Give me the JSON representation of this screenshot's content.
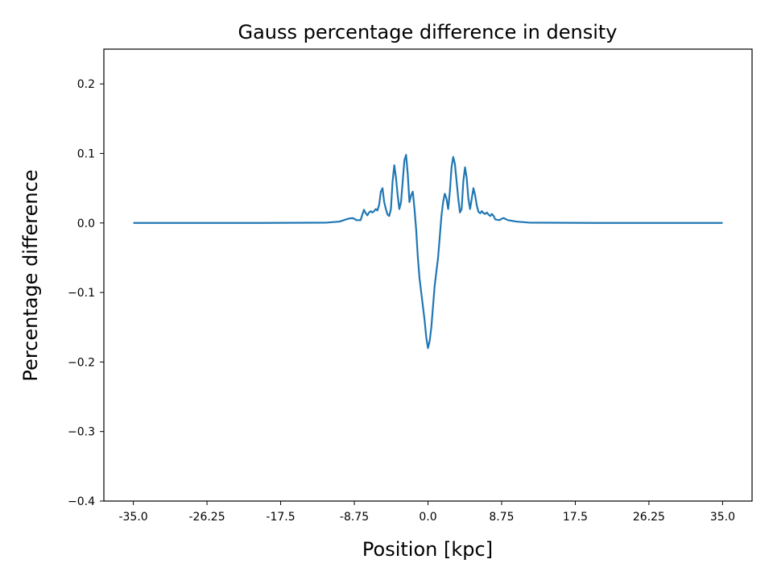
{
  "chart_data": {
    "type": "line",
    "title": "Gauss percentage difference in density",
    "xlabel": "Position [kpc]",
    "ylabel": "Percentage difference",
    "xlim": [
      -38.5,
      38.5
    ],
    "ylim": [
      -0.4,
      0.25
    ],
    "xticks": [
      -35.0,
      -26.25,
      -17.5,
      -8.75,
      0.0,
      8.75,
      17.5,
      26.25,
      35.0
    ],
    "xtick_labels": [
      "-35.0",
      "-26.25",
      "-17.5",
      "-8.75",
      "0.0",
      "8.75",
      "17.5",
      "26.25",
      "35.0"
    ],
    "yticks": [
      0.2,
      0.1,
      0.0,
      -0.1,
      -0.2,
      -0.3,
      -0.4
    ],
    "ytick_labels": [
      "0.2",
      "0.1",
      "0.0",
      "−0.1",
      "−0.2",
      "−0.3",
      "−0.4"
    ],
    "grid": false,
    "line_color": "#1f77b4",
    "series": [
      {
        "x": [
          -35.0,
          -20.0,
          -12.0,
          -10.5,
          -9.5,
          -9.0,
          -8.75,
          -8.5,
          -8.0,
          -7.8,
          -7.6,
          -7.4,
          -7.2,
          -7.0,
          -6.8,
          -6.6,
          -6.4,
          -6.2,
          -6.0,
          -5.8,
          -5.6,
          -5.4,
          -5.2,
          -5.0,
          -4.8,
          -4.6,
          -4.4,
          -4.2,
          -4.0,
          -3.8,
          -3.6,
          -3.4,
          -3.2,
          -3.0,
          -2.8,
          -2.6,
          -2.4,
          -2.2,
          -2.0,
          -1.8,
          -1.6,
          -1.4,
          -1.2,
          -1.0,
          -0.8,
          -0.6,
          -0.4,
          -0.2,
          0.0,
          0.2,
          0.4,
          0.6,
          0.8,
          1.0,
          1.2,
          1.4,
          1.6,
          1.8,
          2.0,
          2.2,
          2.4,
          2.6,
          2.8,
          3.0,
          3.2,
          3.4,
          3.6,
          3.8,
          4.0,
          4.2,
          4.4,
          4.6,
          4.8,
          5.0,
          5.2,
          5.4,
          5.6,
          5.8,
          6.0,
          6.2,
          6.4,
          6.6,
          6.8,
          7.0,
          7.2,
          7.4,
          7.6,
          7.8,
          8.0,
          8.5,
          8.75,
          9.0,
          9.5,
          10.5,
          12.0,
          20.0,
          35.0
        ],
        "y": [
          0.0,
          0.0,
          0.0005,
          0.002,
          0.006,
          0.007,
          0.006,
          0.004,
          0.004,
          0.012,
          0.019,
          0.014,
          0.011,
          0.015,
          0.017,
          0.015,
          0.017,
          0.02,
          0.018,
          0.026,
          0.045,
          0.05,
          0.03,
          0.02,
          0.012,
          0.01,
          0.02,
          0.06,
          0.083,
          0.065,
          0.04,
          0.02,
          0.03,
          0.06,
          0.09,
          0.098,
          0.07,
          0.03,
          0.04,
          0.045,
          0.02,
          -0.01,
          -0.05,
          -0.08,
          -0.1,
          -0.12,
          -0.14,
          -0.165,
          -0.18,
          -0.17,
          -0.15,
          -0.12,
          -0.09,
          -0.07,
          -0.05,
          -0.02,
          0.01,
          0.03,
          0.042,
          0.035,
          0.02,
          0.045,
          0.08,
          0.095,
          0.085,
          0.06,
          0.035,
          0.015,
          0.02,
          0.06,
          0.08,
          0.065,
          0.035,
          0.02,
          0.035,
          0.05,
          0.04,
          0.025,
          0.016,
          0.014,
          0.017,
          0.014,
          0.013,
          0.015,
          0.012,
          0.01,
          0.013,
          0.01,
          0.005,
          0.004,
          0.006,
          0.007,
          0.004,
          0.002,
          0.0005,
          0.0,
          0.0
        ]
      }
    ]
  }
}
